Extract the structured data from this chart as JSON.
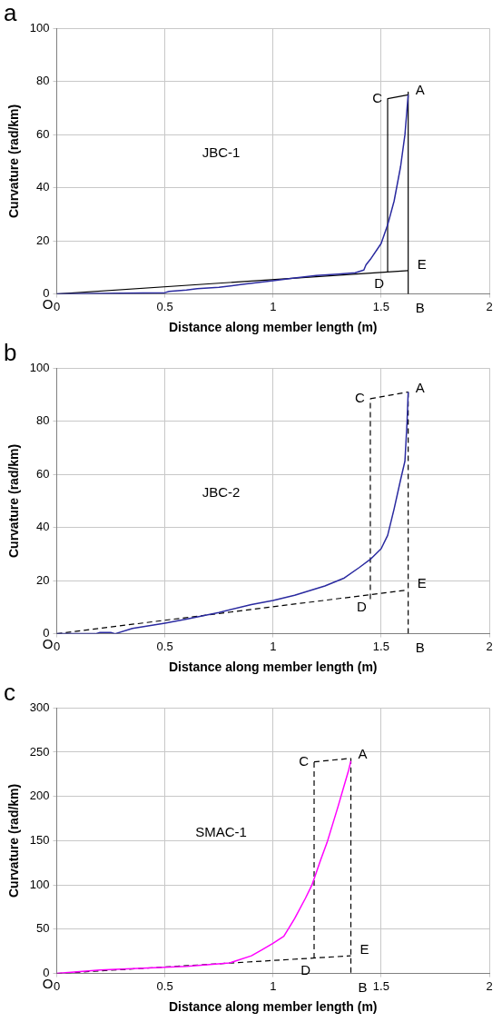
{
  "chart_data": [
    {
      "type": "line",
      "title": "a",
      "xlabel": "Distance along member length (m)",
      "ylabel": "Curvature (rad/km)",
      "xlim": [
        0,
        2
      ],
      "xticks": [
        0,
        0.5,
        1,
        1.5,
        2
      ],
      "ylim": [
        0,
        100
      ],
      "yticks": [
        0,
        20,
        40,
        60,
        80,
        100
      ],
      "grid": true,
      "legend": false,
      "marker": "none",
      "series": [
        {
          "name": "JBC-1",
          "color": "#2a2aa0",
          "x": [
            0,
            0.5,
            0.52,
            0.6,
            0.65,
            0.75,
            0.85,
            1.0,
            1.1,
            1.2,
            1.3,
            1.38,
            1.42,
            1.43,
            1.45,
            1.5,
            1.53,
            1.56,
            1.59,
            1.61,
            1.625
          ],
          "values": [
            0,
            0.5,
            1,
            1.5,
            2,
            2.5,
            3.5,
            5,
            6,
            7,
            7.5,
            8,
            9,
            11,
            13,
            19,
            26,
            35,
            48,
            60,
            75
          ]
        },
        {
          "color": "#000000",
          "line_style": "solid",
          "x": [
            0,
            1.625
          ],
          "values": [
            0,
            8.8
          ]
        },
        {
          "color": "#000000",
          "line_style": "solid",
          "x": [
            1.53,
            1.625
          ],
          "values": [
            73.5,
            75
          ]
        },
        {
          "color": "#000000",
          "line_style": "solid",
          "x": [
            1.53,
            1.53
          ],
          "values": [
            73.5,
            8.3
          ]
        },
        {
          "color": "#000000",
          "line_style": "solid",
          "x": [
            1.625,
            1.625
          ],
          "values": [
            76,
            0
          ]
        }
      ],
      "annotations": [
        {
          "text": "O",
          "x": 0,
          "y": 0
        },
        {
          "text": "A",
          "x": 1.625,
          "y": 75
        },
        {
          "text": "B",
          "x": 1.625,
          "y": 0
        },
        {
          "text": "C",
          "x": 1.53,
          "y": 73.5
        },
        {
          "text": "D",
          "x": 1.53,
          "y": 8.3
        },
        {
          "text": "E",
          "x": 1.625,
          "y": 8.8
        }
      ]
    },
    {
      "type": "line",
      "title": "b",
      "xlabel": "Distance along member length (m)",
      "ylabel": "Curvature (rad/km)",
      "xlim": [
        0,
        2
      ],
      "xticks": [
        0,
        0.5,
        1,
        1.5,
        2
      ],
      "ylim": [
        0,
        100
      ],
      "yticks": [
        0,
        20,
        40,
        60,
        80,
        100
      ],
      "grid": true,
      "legend": false,
      "marker": "none",
      "series": [
        {
          "name": "JBC-2",
          "color": "#2a2aa0",
          "x": [
            0,
            0.18,
            0.2,
            0.25,
            0.27,
            0.35,
            0.5,
            0.6,
            0.75,
            0.9,
            1.0,
            1.1,
            1.24,
            1.33,
            1.4,
            1.45,
            1.5,
            1.53,
            1.56,
            1.59,
            1.61,
            1.62,
            1.625
          ],
          "values": [
            0,
            0,
            0.5,
            0.5,
            0,
            2,
            4,
            5.5,
            8,
            11,
            12.5,
            14.5,
            18,
            21,
            25,
            28,
            32,
            37,
            47,
            58,
            65,
            80,
            91
          ]
        },
        {
          "color": "#000000",
          "line_style": "dashed",
          "x": [
            0,
            1.625
          ],
          "values": [
            0,
            16.5
          ]
        },
        {
          "color": "#000000",
          "line_style": "dashed",
          "x": [
            1.45,
            1.625
          ],
          "values": [
            88.5,
            91
          ]
        },
        {
          "color": "#000000",
          "line_style": "dashed",
          "x": [
            1.45,
            1.45
          ],
          "values": [
            13,
            88.5
          ]
        },
        {
          "color": "#000000",
          "line_style": "dashed",
          "x": [
            1.625,
            1.625
          ],
          "values": [
            91,
            0
          ]
        }
      ],
      "annotations": [
        {
          "text": "O",
          "x": 0,
          "y": 0
        },
        {
          "text": "A",
          "x": 1.625,
          "y": 91
        },
        {
          "text": "B",
          "x": 1.625,
          "y": 0
        },
        {
          "text": "C",
          "x": 1.45,
          "y": 88.5
        },
        {
          "text": "D",
          "x": 1.45,
          "y": 14.7
        },
        {
          "text": "E",
          "x": 1.625,
          "y": 16.5
        }
      ]
    },
    {
      "type": "line",
      "title": "c",
      "xlabel": "Distance along member length (m)",
      "ylabel": "Curvature (rad/km)",
      "xlim": [
        0,
        2
      ],
      "xticks": [
        0,
        0.5,
        1,
        1.5,
        2
      ],
      "ylim": [
        0,
        300
      ],
      "yticks": [
        0,
        50,
        100,
        150,
        200,
        250,
        300
      ],
      "grid": true,
      "legend": false,
      "marker": "none",
      "series": [
        {
          "name": "SMAC-1",
          "color": "#ff00ff",
          "x": [
            0,
            0.2,
            0.4,
            0.6,
            0.8,
            0.9,
            0.95,
            1.0,
            1.05,
            1.1,
            1.15,
            1.18,
            1.22,
            1.25,
            1.3,
            1.35,
            1.36
          ],
          "values": [
            0,
            4,
            6,
            8,
            12,
            20,
            27,
            34,
            42,
            62,
            85,
            100,
            128,
            148,
            188,
            230,
            240
          ]
        },
        {
          "color": "#000000",
          "line_style": "dashed",
          "x": [
            0,
            1.36
          ],
          "values": [
            0,
            20
          ]
        },
        {
          "color": "#000000",
          "line_style": "dashed",
          "x": [
            1.19,
            1.36
          ],
          "values": [
            239,
            243
          ]
        },
        {
          "color": "#000000",
          "line_style": "dashed",
          "x": [
            1.19,
            1.19
          ],
          "values": [
            17,
            239
          ]
        },
        {
          "color": "#000000",
          "line_style": "dashed",
          "x": [
            1.36,
            1.36
          ],
          "values": [
            243,
            0
          ]
        }
      ],
      "annotations": [
        {
          "text": "O",
          "x": 0,
          "y": 0
        },
        {
          "text": "A",
          "x": 1.36,
          "y": 243
        },
        {
          "text": "B",
          "x": 1.36,
          "y": 0
        },
        {
          "text": "C",
          "x": 1.19,
          "y": 239
        },
        {
          "text": "D",
          "x": 1.19,
          "y": 17
        },
        {
          "text": "E",
          "x": 1.36,
          "y": 20
        }
      ]
    }
  ]
}
